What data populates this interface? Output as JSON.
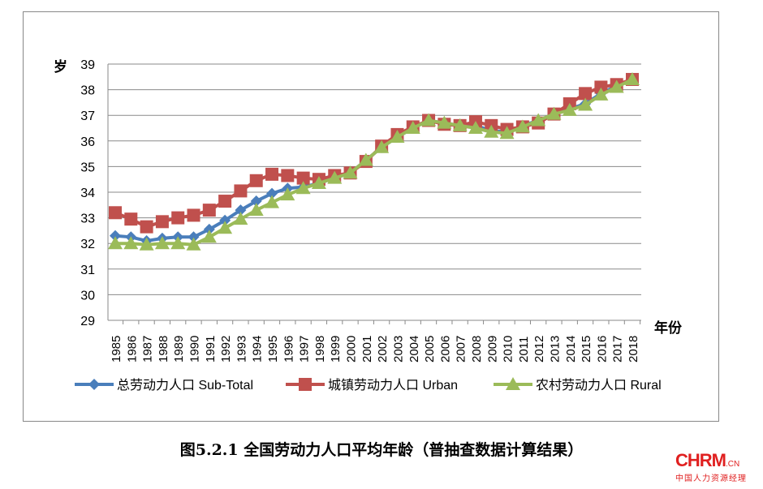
{
  "chart_data": {
    "type": "line",
    "title": "图5.2.1 全国劳动力人口平均年龄（普抽查数据计算结果）",
    "xlabel": "年份",
    "ylabel": "岁",
    "ylim": [
      29,
      39
    ],
    "yticks": [
      29,
      30,
      31,
      32,
      33,
      34,
      35,
      36,
      37,
      38,
      39
    ],
    "grid": true,
    "legend_placement": "bottom",
    "x": [
      "1985",
      "1986",
      "1987",
      "1988",
      "1989",
      "1990",
      "1991",
      "1992",
      "1993",
      "1994",
      "1995",
      "1996",
      "1997",
      "1998",
      "1999",
      "2000",
      "2001",
      "2002",
      "2003",
      "2004",
      "2005",
      "2006",
      "2007",
      "2008",
      "2009",
      "2010",
      "2011",
      "2012",
      "2013",
      "2014",
      "2015",
      "2016",
      "2017",
      "2018"
    ],
    "series": [
      {
        "name": "总劳动力人口 Sub-Total",
        "color": "#4a7ebb",
        "marker": "diamond",
        "values": [
          32.3,
          32.25,
          32.1,
          32.2,
          32.25,
          32.25,
          32.55,
          32.9,
          33.3,
          33.65,
          33.95,
          34.15,
          34.2,
          34.35,
          34.55,
          34.75,
          35.25,
          35.75,
          36.15,
          36.5,
          36.8,
          36.7,
          36.6,
          36.6,
          36.4,
          36.35,
          36.6,
          36.8,
          37.05,
          37.25,
          37.45,
          37.85,
          38.15,
          38.4
        ]
      },
      {
        "name": "城镇劳动力人口 Urban",
        "color": "#c0504d",
        "marker": "square",
        "values": [
          33.2,
          32.95,
          32.65,
          32.85,
          33.0,
          33.1,
          33.3,
          33.65,
          34.05,
          34.45,
          34.7,
          34.65,
          34.55,
          34.5,
          34.65,
          34.75,
          35.2,
          35.8,
          36.25,
          36.55,
          36.8,
          36.65,
          36.6,
          36.75,
          36.6,
          36.45,
          36.55,
          36.7,
          37.05,
          37.45,
          37.85,
          38.1,
          38.2,
          38.4
        ]
      },
      {
        "name": "农村劳动力人口 Rural",
        "color": "#9bbb59",
        "marker": "triangle",
        "values": [
          32.0,
          32.0,
          31.95,
          32.0,
          32.0,
          31.95,
          32.25,
          32.6,
          32.95,
          33.3,
          33.6,
          33.9,
          34.15,
          34.35,
          34.55,
          34.75,
          35.25,
          35.75,
          36.15,
          36.5,
          36.8,
          36.7,
          36.6,
          36.5,
          36.35,
          36.3,
          36.55,
          36.8,
          37.05,
          37.2,
          37.4,
          37.8,
          38.1,
          38.4
        ]
      }
    ]
  },
  "logo": {
    "main": "CHRM",
    ".cn": ".CN",
    "sub": "中国人力资源经理"
  }
}
